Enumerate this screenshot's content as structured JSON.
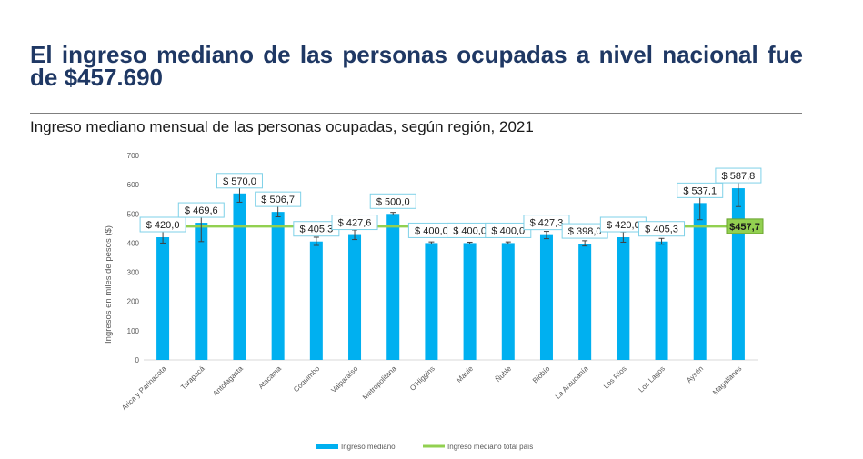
{
  "slide": {
    "headline": "El ingreso mediano de las personas ocupadas a nivel nacional fue de $457.690",
    "subtitle": "Ingreso mediano mensual de las personas ocupadas, según región, 2021"
  },
  "colors": {
    "headline": "#1f3864",
    "bar": "#00b0f0",
    "reference_line": "#92d050",
    "label_border": "#7fd1e8"
  },
  "chart_data": {
    "type": "bar",
    "ylabel": "Ingresos en miles de pesos ($)",
    "ylim": [
      0,
      700
    ],
    "yticks": [
      "0",
      "100",
      "200",
      "300",
      "400",
      "500",
      "600",
      "700"
    ],
    "grid": false,
    "legend_placement": "bottom",
    "categories": [
      "Arica y Parinacota",
      "Tarapacá",
      "Antofagasta",
      "Atacama",
      "Coquimbo",
      "Valparaíso",
      "Metropolitana",
      "O'Higgins",
      "Maule",
      "Ñuble",
      "Biobío",
      "La Araucanía",
      "Los Ríos",
      "Los Lagos",
      "Aysén",
      "Magallanes"
    ],
    "series": [
      {
        "name": "Ingreso mediano",
        "values": [
          420.0,
          469.6,
          570.0,
          506.7,
          405.3,
          427.6,
          500.0,
          400.0,
          400.0,
          400.0,
          427.3,
          398.0,
          420.0,
          405.3,
          537.1,
          587.8
        ],
        "labels": [
          "$ 420,0",
          "$ 469,6",
          "$ 570,0",
          "$ 506,7",
          "$ 405,3",
          "$ 427,6",
          "$ 500,0",
          "$ 400,0",
          "$ 400,0",
          "$ 400,0",
          "$ 427,3",
          "$ 398,0",
          "$ 420,0",
          "$ 405,3",
          "$ 537,1",
          "$ 587,8"
        ],
        "error_low": [
          400,
          405,
          540,
          490,
          392,
          412,
          496,
          397,
          397,
          397,
          415,
          390,
          403,
          396,
          480,
          525
        ],
        "error_high": [
          443,
          535,
          612,
          533,
          420,
          445,
          505,
          404,
          403,
          404,
          440,
          408,
          438,
          416,
          600,
          650
        ]
      }
    ],
    "reference": {
      "name": "Ingreso mediano total país",
      "value": 457.7,
      "label": "$457,7"
    }
  }
}
